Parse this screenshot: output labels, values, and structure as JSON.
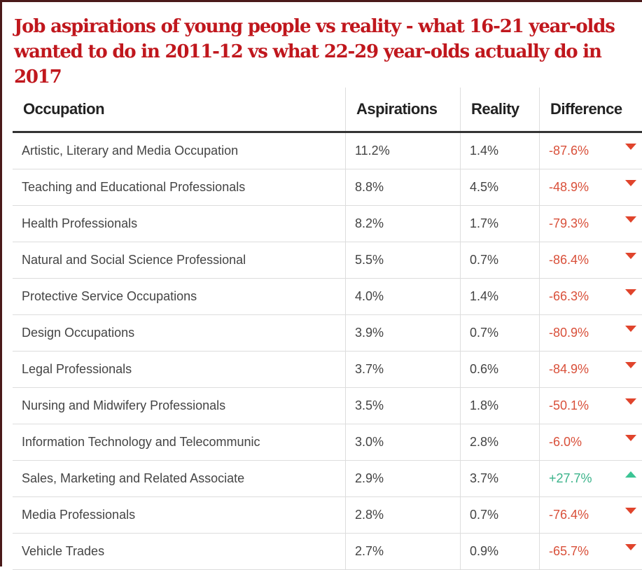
{
  "title": "Job aspirations of young people vs reality - what 16-21 year-olds wanted to do in 2011-12 vs what 22-29 year-olds actually do in 2017",
  "columns": [
    "Occupation",
    "Aspirations",
    "Reality",
    "Difference"
  ],
  "colors": {
    "title": "#c0171d",
    "negative": "#d9503a",
    "positive": "#3bb38a"
  },
  "rows": [
    {
      "occupation": "Artistic, Literary and Media Occupation",
      "aspirations": "11.2%",
      "reality": "1.4%",
      "difference": "-87.6%",
      "trend": "down"
    },
    {
      "occupation": "Teaching and Educational Professionals",
      "aspirations": "8.8%",
      "reality": "4.5%",
      "difference": "-48.9%",
      "trend": "down"
    },
    {
      "occupation": "Health Professionals",
      "aspirations": "8.2%",
      "reality": "1.7%",
      "difference": "-79.3%",
      "trend": "down"
    },
    {
      "occupation": "Natural and Social Science Professional",
      "aspirations": "5.5%",
      "reality": "0.7%",
      "difference": "-86.4%",
      "trend": "down"
    },
    {
      "occupation": "Protective Service Occupations",
      "aspirations": "4.0%",
      "reality": "1.4%",
      "difference": "-66.3%",
      "trend": "down"
    },
    {
      "occupation": "Design Occupations",
      "aspirations": "3.9%",
      "reality": "0.7%",
      "difference": "-80.9%",
      "trend": "down"
    },
    {
      "occupation": "Legal Professionals",
      "aspirations": "3.7%",
      "reality": "0.6%",
      "difference": "-84.9%",
      "trend": "down"
    },
    {
      "occupation": "Nursing and Midwifery Professionals",
      "aspirations": "3.5%",
      "reality": "1.8%",
      "difference": "-50.1%",
      "trend": "down"
    },
    {
      "occupation": "Information Technology and Telecommunic",
      "aspirations": "3.0%",
      "reality": "2.8%",
      "difference": "-6.0%",
      "trend": "down"
    },
    {
      "occupation": "Sales, Marketing and Related Associate",
      "aspirations": "2.9%",
      "reality": "3.7%",
      "difference": "+27.7%",
      "trend": "up"
    },
    {
      "occupation": "Media Professionals",
      "aspirations": "2.8%",
      "reality": "0.7%",
      "difference": "-76.4%",
      "trend": "down"
    },
    {
      "occupation": "Vehicle Trades",
      "aspirations": "2.7%",
      "reality": "0.9%",
      "difference": "-65.7%",
      "trend": "down"
    }
  ]
}
